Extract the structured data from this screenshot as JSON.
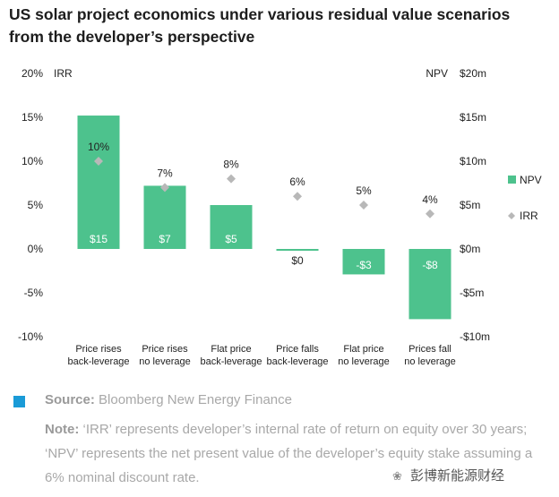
{
  "title": "US solar project economics under various residual value scenarios from the developer’s perspective",
  "chart_data": {
    "type": "bar",
    "categories": [
      [
        "Price rises",
        "back-leverage"
      ],
      [
        "Price rises",
        "no leverage"
      ],
      [
        "Flat price",
        "back-leverage"
      ],
      [
        "Price falls",
        "back-leverage"
      ],
      [
        "Flat price",
        "no leverage"
      ],
      [
        "Prices fall",
        "no leverage"
      ]
    ],
    "series": [
      {
        "name": "NPV",
        "kind": "bar",
        "axis": "right",
        "values": [
          15.2,
          7.2,
          5.0,
          -0.2,
          -2.9,
          -8.0
        ],
        "labels": [
          "$15",
          "$7",
          "$5",
          "$0",
          "-$3",
          "-$8"
        ],
        "color": "#4dc28d"
      },
      {
        "name": "IRR",
        "kind": "marker",
        "axis": "left",
        "values": [
          10,
          7,
          8,
          6,
          5,
          4
        ],
        "labels": [
          "10%",
          "7%",
          "8%",
          "6%",
          "5%",
          "4%"
        ],
        "color": "#b8b8b8"
      }
    ],
    "left_axis": {
      "label": "IRR",
      "range": [
        -10,
        20
      ],
      "ticks": [
        20,
        15,
        10,
        5,
        0,
        -5,
        -10
      ],
      "tick_labels": [
        "20%",
        "15%",
        "10%",
        "5%",
        "0%",
        "-5%",
        "-10%"
      ]
    },
    "right_axis": {
      "label": "NPV",
      "range": [
        -10,
        20
      ],
      "ticks": [
        20,
        15,
        10,
        5,
        0,
        -5,
        -10
      ],
      "tick_labels": [
        "$20m",
        "$15m",
        "$10m",
        "$5m",
        "$0m",
        "-$5m",
        "-$10m"
      ]
    },
    "legend": {
      "placement": "right",
      "items": [
        "NPV",
        "IRR"
      ]
    }
  },
  "footer": {
    "source_label": "Source:",
    "source_text": " Bloomberg New Energy Finance",
    "note_label": "Note:",
    "note_text": " ‘IRR’ represents developer’s internal rate of return on equity over 30 years; ‘NPV’ represents the net present value of the developer’s equity stake assuming a 6% nominal discount rate."
  },
  "watermark": "彭博新能源财经"
}
